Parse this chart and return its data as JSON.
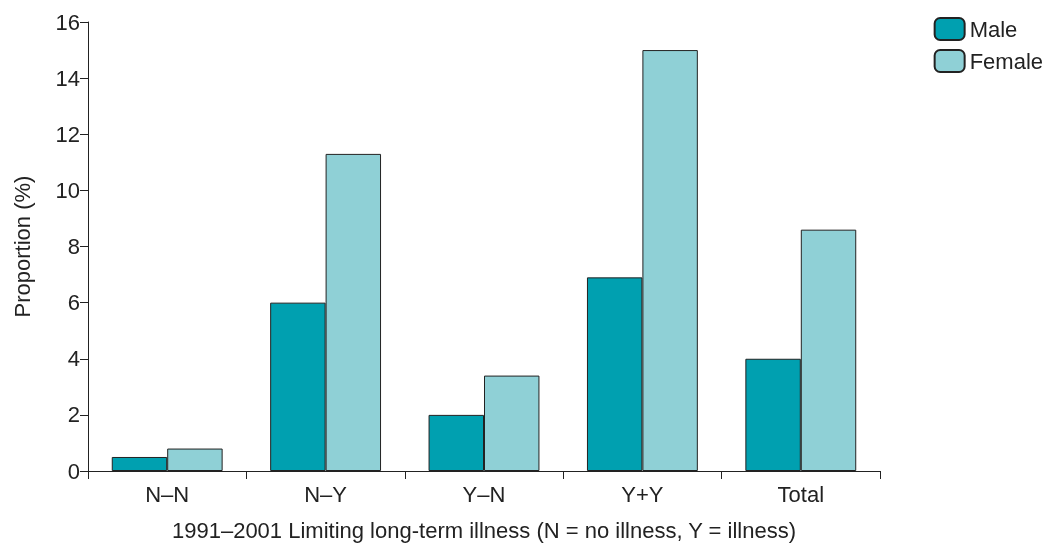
{
  "chart_data": {
    "type": "bar",
    "xlabel": "1991–2001 Limiting long-term illness (N = no illness, Y = illness)",
    "ylabel": "Proportion (%)",
    "categories": [
      "N–N",
      "N–Y",
      "Y–N",
      "Y+Y",
      "Total"
    ],
    "series": [
      {
        "name": "Male",
        "color": "#00a0b0",
        "values": [
          0.5,
          6.0,
          2.0,
          6.9,
          4.0
        ]
      },
      {
        "name": "Female",
        "color": "#8fd0d6",
        "values": [
          0.8,
          11.3,
          3.4,
          15.0,
          8.6
        ]
      }
    ],
    "ylim": [
      0,
      16
    ],
    "yticks": [
      0,
      2,
      4,
      6,
      8,
      10,
      12,
      14,
      16
    ],
    "grid": false,
    "legend": "top right"
  }
}
